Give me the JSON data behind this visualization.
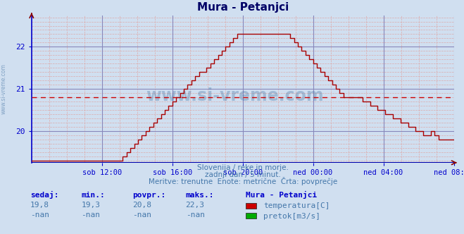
{
  "title": "Mura - Petanjci",
  "bg_color": "#d0dff0",
  "plot_bg_color": "#d0dff0",
  "grid_color_major": "#8888bb",
  "grid_color_minor": "#ddaaaa",
  "line_color": "#aa0000",
  "avg_line_color": "#cc0000",
  "axis_color": "#0000cc",
  "text_color": "#4477aa",
  "title_color": "#000066",
  "ylim_min": 19.25,
  "ylim_max": 22.75,
  "avg_value": 20.8,
  "subtitle1": "Slovenija / reke in morje.",
  "subtitle2": "zadnji dan / 5 minut.",
  "subtitle3": "Meritve: trenutne  Enote: metrične  Črta: povprečje",
  "stats_headers": [
    "sedaj:",
    "min.:",
    "povpr.:",
    "maks.:"
  ],
  "stats_row1": [
    "19,8",
    "19,3",
    "20,8",
    "22,3"
  ],
  "stats_row2": [
    "-nan",
    "-nan",
    "-nan",
    "-nan"
  ],
  "legend_title": "Mura - Petanjci",
  "legend_items": [
    {
      "label": "temperatura[C]",
      "color": "#cc0000"
    },
    {
      "label": "pretok[m3/s]",
      "color": "#00aa00"
    }
  ],
  "x_tick_labels": [
    "sob 12:00",
    "sob 16:00",
    "sob 20:00",
    "ned 00:00",
    "ned 04:00",
    "ned 08:00"
  ],
  "ytick_labels": [
    "20",
    "21",
    "22"
  ],
  "ytick_values": [
    20.0,
    21.0,
    22.0
  ],
  "watermark": "www.si-vreme.com",
  "side_text": "www.si-vreme.com",
  "temp_data": [
    19.3,
    19.3,
    19.3,
    19.3,
    19.3,
    19.3,
    19.3,
    19.3,
    19.3,
    19.3,
    19.3,
    19.3,
    19.3,
    19.3,
    19.3,
    19.3,
    19.3,
    19.3,
    19.3,
    19.3,
    19.3,
    19.3,
    19.3,
    19.3,
    19.4,
    19.5,
    19.6,
    19.7,
    19.8,
    19.9,
    20.0,
    20.1,
    20.2,
    20.3,
    20.4,
    20.5,
    20.6,
    20.7,
    20.8,
    20.9,
    21.0,
    21.1,
    21.2,
    21.3,
    21.4,
    21.4,
    21.5,
    21.6,
    21.7,
    21.8,
    21.9,
    22.0,
    22.1,
    22.2,
    22.3,
    22.3,
    22.3,
    22.3,
    22.3,
    22.3,
    22.3,
    22.3,
    22.3,
    22.3,
    22.3,
    22.3,
    22.3,
    22.3,
    22.2,
    22.1,
    22.0,
    21.9,
    21.8,
    21.7,
    21.6,
    21.5,
    21.4,
    21.3,
    21.2,
    21.1,
    21.0,
    20.9,
    20.8,
    20.8,
    20.8,
    20.8,
    20.8,
    20.7,
    20.7,
    20.6,
    20.6,
    20.5,
    20.5,
    20.4,
    20.4,
    20.3,
    20.3,
    20.2,
    20.2,
    20.1,
    20.1,
    20.0,
    20.0,
    19.9,
    19.9,
    20.0,
    19.9,
    19.8,
    19.8,
    19.8,
    19.8,
    19.8
  ]
}
